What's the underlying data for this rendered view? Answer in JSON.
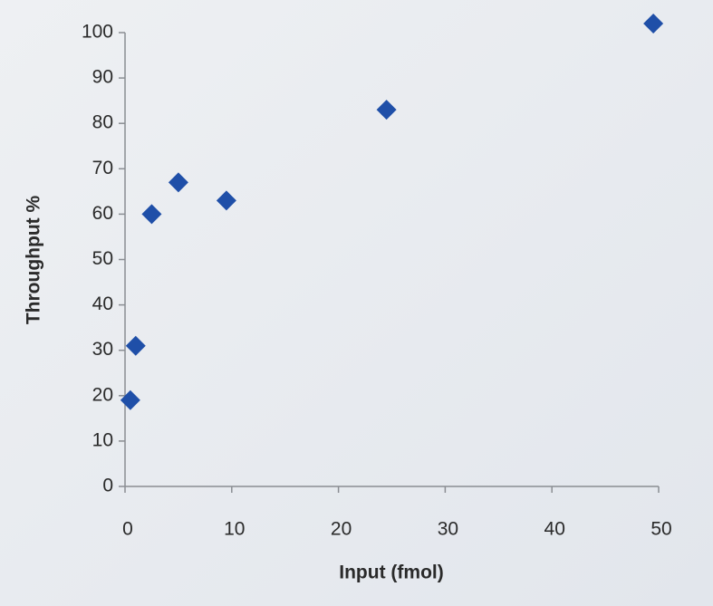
{
  "chart_data": {
    "type": "scatter",
    "x_label": "Input (fmol)",
    "y_label": "Throughput %",
    "x": [
      0.5,
      1,
      2.5,
      5,
      9.5,
      24.5,
      49.5
    ],
    "series": [
      {
        "color": "#1f4fa8",
        "values": [
          19,
          31,
          60,
          67,
          63,
          83,
          102
        ]
      }
    ],
    "xlim": [
      0,
      50
    ],
    "xticks": [
      0,
      10,
      20,
      30,
      40,
      50
    ],
    "ylim": [
      0,
      100
    ],
    "yticks": [
      0,
      10,
      20,
      30,
      40,
      50,
      60,
      70,
      80,
      90,
      100
    ],
    "grid": false
  }
}
